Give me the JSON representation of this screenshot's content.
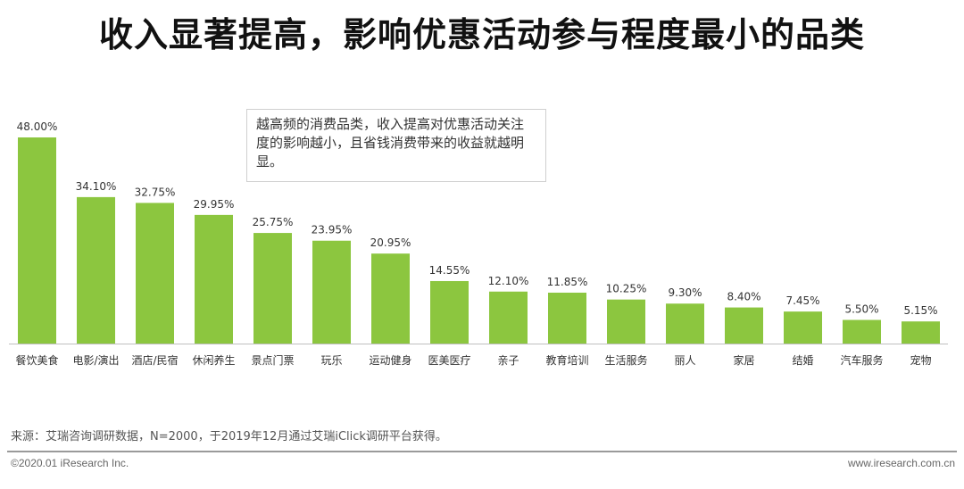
{
  "title": "收入显著提高，影响优惠活动参与程度最小的品类",
  "note": "越高频的消费品类，收入提高对优惠活动关注度的影响越小，且省钱消费带来的收益就越明显。",
  "source": "来源：艾瑞咨询调研数据，N=2000，于2019年12月通过艾瑞iClick调研平台获得。",
  "footer": {
    "copyright": "©2020.01 iResearch Inc.",
    "website": "www.iresearch.com.cn"
  },
  "colors": {
    "bar": "#8cc63f",
    "axis": "#bfbfbf"
  },
  "chart_data": {
    "type": "bar",
    "categories": [
      "餐饮美食",
      "电影/演出",
      "酒店/民宿",
      "休闲养生",
      "景点门票",
      "玩乐",
      "运动健身",
      "医美医疗",
      "亲子",
      "教育培训",
      "生活服务",
      "丽人",
      "家居",
      "结婚",
      "汽车服务",
      "宠物"
    ],
    "values": [
      48.0,
      34.1,
      32.75,
      29.95,
      25.75,
      23.95,
      20.95,
      14.55,
      12.1,
      11.85,
      10.25,
      9.3,
      8.4,
      7.45,
      5.5,
      5.15
    ],
    "labels": [
      "48.00%",
      "34.10%",
      "32.75%",
      "29.95%",
      "25.75%",
      "23.95%",
      "20.95%",
      "14.55%",
      "12.10%",
      "11.85%",
      "10.25%",
      "9.30%",
      "8.40%",
      "7.45%",
      "5.50%",
      "5.15%"
    ],
    "ylim": [
      0,
      48
    ]
  }
}
